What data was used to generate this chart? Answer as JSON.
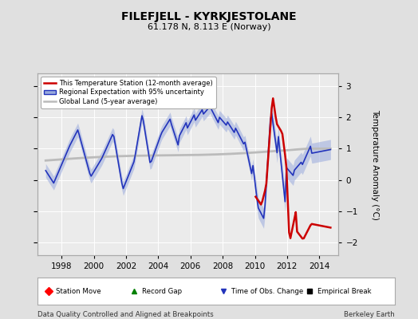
{
  "title": "FILEFJELL - KYRKJESTOLANE",
  "subtitle": "61.178 N, 8.113 E (Norway)",
  "footer_left": "Data Quality Controlled and Aligned at Breakpoints",
  "footer_right": "Berkeley Earth",
  "ylabel": "Temperature Anomaly (°C)",
  "ylim": [
    -2.4,
    3.4
  ],
  "yticks": [
    -2,
    -1,
    0,
    1,
    2,
    3
  ],
  "xlim": [
    1996.5,
    2015.2
  ],
  "xticks": [
    1998,
    2000,
    2002,
    2004,
    2006,
    2008,
    2010,
    2012,
    2014
  ],
  "bg_color": "#e0e0e0",
  "plot_bg_color": "#ebebeb",
  "red_color": "#cc0000",
  "blue_color": "#2233bb",
  "blue_fill_color": "#99aadd",
  "gray_color": "#bbbbbb",
  "legend_items": [
    {
      "label": "This Temperature Station (12-month average)",
      "color": "#cc0000",
      "lw": 2
    },
    {
      "label": "Regional Expectation with 95% uncertainty",
      "color": "#2233bb",
      "lw": 1.5
    },
    {
      "label": "Global Land (5-year average)",
      "color": "#bbbbbb",
      "lw": 2
    }
  ],
  "marker_legend": [
    {
      "marker": "D",
      "color": "red",
      "label": "Station Move"
    },
    {
      "marker": "^",
      "color": "green",
      "label": "Record Gap"
    },
    {
      "marker": "v",
      "color": "blue",
      "label": "Time of Obs. Change"
    },
    {
      "marker": "s",
      "color": "black",
      "label": "Empirical Break"
    }
  ]
}
